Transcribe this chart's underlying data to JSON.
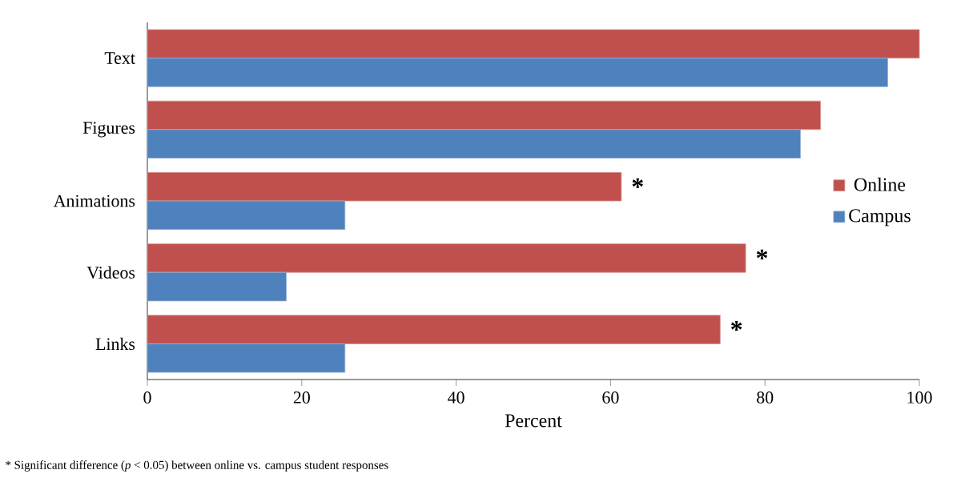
{
  "chart_data": {
    "type": "bar",
    "orientation": "horizontal",
    "xlabel": "Percent",
    "categories": [
      "Text",
      "Figures",
      "Animations",
      "Videos",
      "Links"
    ],
    "series": [
      {
        "name": "Online",
        "color": "#c0504d",
        "values": [
          100,
          87.2,
          61.4,
          77.5,
          74.2
        ]
      },
      {
        "name": "Campus",
        "color": "#4f81bd",
        "values": [
          95.9,
          84.6,
          25.6,
          18.0,
          25.6
        ]
      }
    ],
    "xlim": [
      0,
      100
    ],
    "xticks": [
      0,
      20,
      40,
      60,
      80,
      100
    ],
    "grid": false,
    "legend": "right",
    "annotations": [
      {
        "text": "*",
        "x": 61.4,
        "y": "Animations"
      },
      {
        "text": "*",
        "x": 77.5,
        "y": "Videos"
      },
      {
        "text": "*",
        "x": 74.2,
        "y": "Links"
      },
      "* Significant difference (*p* < 0.05) between online vs. campus student responses"
    ]
  }
}
